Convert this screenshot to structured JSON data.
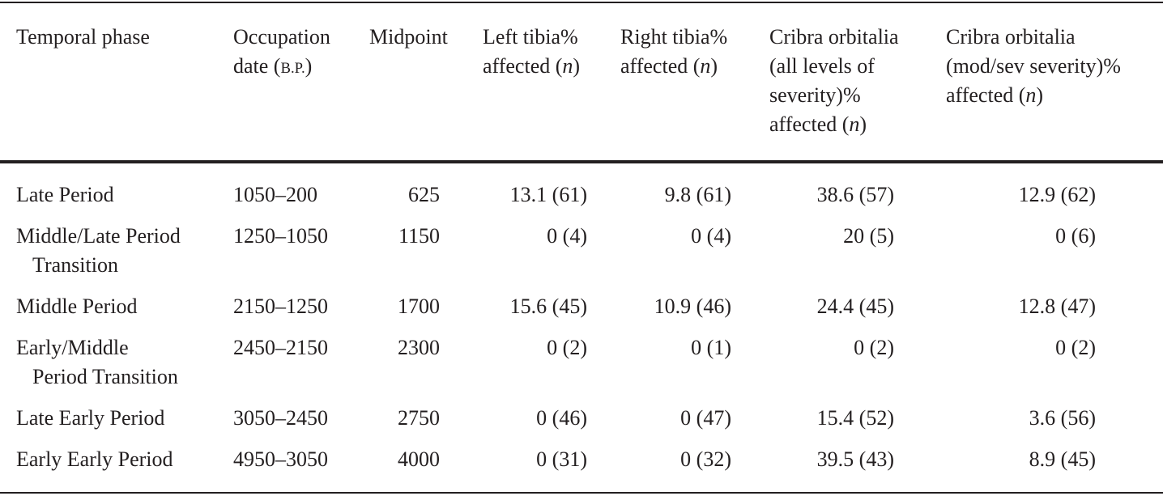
{
  "table": {
    "header": [
      [
        [
          "Temporal phase"
        ]
      ],
      [
        [
          "Occupation"
        ],
        [
          "date (",
          {
            "text": "B.P.",
            "style": "small-caps"
          },
          ")"
        ]
      ],
      [
        [
          "Midpoint"
        ]
      ],
      [
        [
          "Left tibia%"
        ],
        [
          "affected (",
          {
            "text": "n",
            "style": "italic"
          },
          ")"
        ]
      ],
      [
        [
          "Right tibia%"
        ],
        [
          "affected (",
          {
            "text": "n",
            "style": "italic"
          },
          ")"
        ]
      ],
      [
        [
          "Cribra orbitalia"
        ],
        [
          "(all levels of"
        ],
        [
          "severity)%"
        ],
        [
          "affected (",
          {
            "text": "n",
            "style": "italic"
          },
          ")"
        ]
      ],
      [
        [
          "Cribra orbitalia"
        ],
        [
          "(mod/sev severity)%"
        ],
        [
          "affected (",
          {
            "text": "n",
            "style": "italic"
          },
          ")"
        ]
      ]
    ],
    "rows": [
      [
        [
          "Late Period"
        ],
        "1050–200",
        "625",
        "13.1 (61)",
        "9.8 (61)",
        "38.6 (57)",
        "12.9 (62)"
      ],
      [
        [
          "Middle/Late Period",
          "Transition"
        ],
        "1250–1050",
        "1150",
        "0 (4)",
        "0 (4)",
        "20 (5)",
        "0 (6)"
      ],
      [
        [
          "Middle Period"
        ],
        "2150–1250",
        "1700",
        "15.6 (45)",
        "10.9 (46)",
        "24.4 (45)",
        "12.8 (47)"
      ],
      [
        [
          "Early/Middle",
          "Period Transition"
        ],
        "2450–2150",
        "2300",
        "0 (2)",
        "0 (1)",
        "0 (2)",
        "0 (2)"
      ],
      [
        [
          "Late Early Period"
        ],
        "3050–2450",
        "2750",
        "0 (46)",
        "0 (47)",
        "15.4 (52)",
        "3.6 (56)"
      ],
      [
        [
          "Early Early Period"
        ],
        "4950–3050",
        "4000",
        "0 (31)",
        "0 (32)",
        "39.5 (43)",
        "8.9 (45)"
      ]
    ]
  }
}
